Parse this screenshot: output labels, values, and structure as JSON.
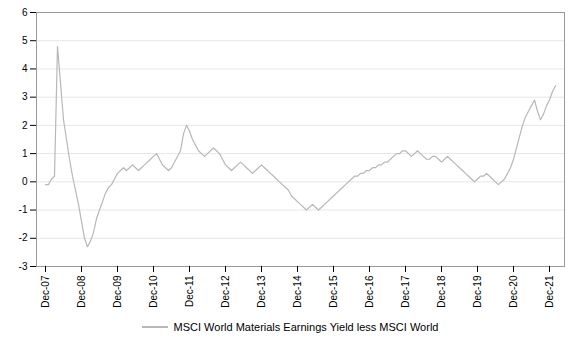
{
  "chart_data": {
    "type": "line",
    "categories": [
      "Dec-07",
      null,
      null,
      null,
      null,
      null,
      null,
      null,
      null,
      null,
      null,
      null,
      "Dec-08",
      null,
      null,
      null,
      null,
      null,
      null,
      null,
      null,
      null,
      null,
      null,
      "Dec-09",
      null,
      null,
      null,
      null,
      null,
      null,
      null,
      null,
      null,
      null,
      null,
      "Dec-10",
      null,
      null,
      null,
      null,
      null,
      null,
      null,
      null,
      null,
      null,
      null,
      "Dec-11",
      null,
      null,
      null,
      null,
      null,
      null,
      null,
      null,
      null,
      null,
      null,
      "Dec-12",
      null,
      null,
      null,
      null,
      null,
      null,
      null,
      null,
      null,
      null,
      null,
      "Dec-13",
      null,
      null,
      null,
      null,
      null,
      null,
      null,
      null,
      null,
      null,
      null,
      "Dec-14",
      null,
      null,
      null,
      null,
      null,
      null,
      null,
      null,
      null,
      null,
      null,
      "Dec-15",
      null,
      null,
      null,
      null,
      null,
      null,
      null,
      null,
      null,
      null,
      null,
      "Dec-16",
      null,
      null,
      null,
      null,
      null,
      null,
      null,
      null,
      null,
      null,
      null,
      "Dec-17",
      null,
      null,
      null,
      null,
      null,
      null,
      null,
      null,
      null,
      null,
      null,
      "Dec-18",
      null,
      null,
      null,
      null,
      null,
      null,
      null,
      null,
      null,
      null,
      null,
      "Dec-19",
      null,
      null,
      null,
      null,
      null,
      null,
      null,
      null,
      null,
      null,
      null,
      "Dec-20",
      null,
      null,
      null,
      null,
      null,
      null,
      null,
      null,
      null,
      null,
      null,
      "Dec-21",
      null,
      null
    ],
    "series": [
      {
        "name": "MSCI World Materials Earnings Yield less MSCI World",
        "color": "#b8b8b8",
        "values": [
          -0.1,
          -0.1,
          0.1,
          0.2,
          4.8,
          3.5,
          2.2,
          1.5,
          0.8,
          0.2,
          -0.3,
          -0.8,
          -1.4,
          -2.0,
          -2.3,
          -2.1,
          -1.8,
          -1.3,
          -1.0,
          -0.7,
          -0.4,
          -0.2,
          -0.1,
          0.1,
          0.3,
          0.4,
          0.5,
          0.4,
          0.5,
          0.6,
          0.5,
          0.4,
          0.5,
          0.6,
          0.7,
          0.8,
          0.9,
          1.0,
          0.8,
          0.6,
          0.5,
          0.4,
          0.5,
          0.7,
          0.9,
          1.1,
          1.7,
          2.0,
          1.8,
          1.5,
          1.3,
          1.1,
          1.0,
          0.9,
          1.0,
          1.1,
          1.2,
          1.1,
          1.0,
          0.8,
          0.6,
          0.5,
          0.4,
          0.5,
          0.6,
          0.7,
          0.6,
          0.5,
          0.4,
          0.3,
          0.4,
          0.5,
          0.6,
          0.5,
          0.4,
          0.3,
          0.2,
          0.1,
          0.0,
          -0.1,
          -0.2,
          -0.3,
          -0.5,
          -0.6,
          -0.7,
          -0.8,
          -0.9,
          -1.0,
          -0.9,
          -0.8,
          -0.9,
          -1.0,
          -0.9,
          -0.8,
          -0.7,
          -0.6,
          -0.5,
          -0.4,
          -0.3,
          -0.2,
          -0.1,
          0.0,
          0.1,
          0.2,
          0.2,
          0.3,
          0.3,
          0.4,
          0.4,
          0.5,
          0.5,
          0.6,
          0.6,
          0.7,
          0.7,
          0.8,
          0.9,
          1.0,
          1.0,
          1.1,
          1.1,
          1.0,
          0.9,
          1.0,
          1.1,
          1.0,
          0.9,
          0.8,
          0.8,
          0.9,
          0.9,
          0.8,
          0.7,
          0.8,
          0.9,
          0.8,
          0.7,
          0.6,
          0.5,
          0.4,
          0.3,
          0.2,
          0.1,
          0.0,
          0.1,
          0.2,
          0.2,
          0.3,
          0.2,
          0.1,
          0.0,
          -0.1,
          0.0,
          0.1,
          0.3,
          0.5,
          0.8,
          1.2,
          1.6,
          2.0,
          2.3,
          2.5,
          2.7,
          2.9,
          2.5,
          2.2,
          2.4,
          2.7,
          2.9,
          3.2,
          3.4
        ]
      }
    ],
    "ylim": [
      -3,
      6
    ],
    "yticks": [
      -3,
      -2,
      -1,
      0,
      1,
      2,
      3,
      4,
      5,
      6
    ],
    "grid": true,
    "legend": "bottom"
  }
}
